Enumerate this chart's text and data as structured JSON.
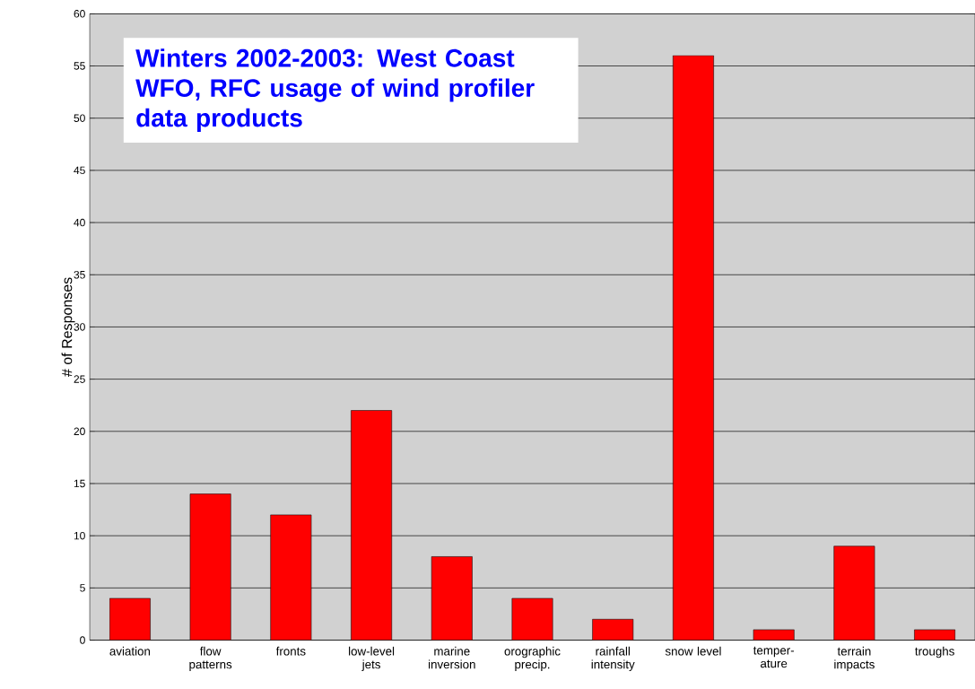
{
  "chart_data": {
    "type": "bar",
    "title": "Winters 2002-2003: West Coast WFO, RFC usage of wind profiler data products",
    "ylabel": "# of Responses",
    "categories": [
      "aviation",
      "flow patterns",
      "fronts",
      "low-level jets",
      "marine inversion",
      "orographic precip.",
      "rainfall intensity",
      "snow level",
      "temper-ature",
      "terrain impacts",
      "troughs"
    ],
    "values": [
      4,
      14,
      12,
      22,
      8,
      4,
      2,
      56,
      1,
      9,
      1
    ],
    "color": "#ff0000",
    "ylim": [
      0,
      60
    ],
    "yticks": [
      0,
      5,
      10,
      15,
      20,
      25,
      30,
      35,
      40,
      45,
      50,
      55,
      60
    ],
    "grid": "y"
  }
}
